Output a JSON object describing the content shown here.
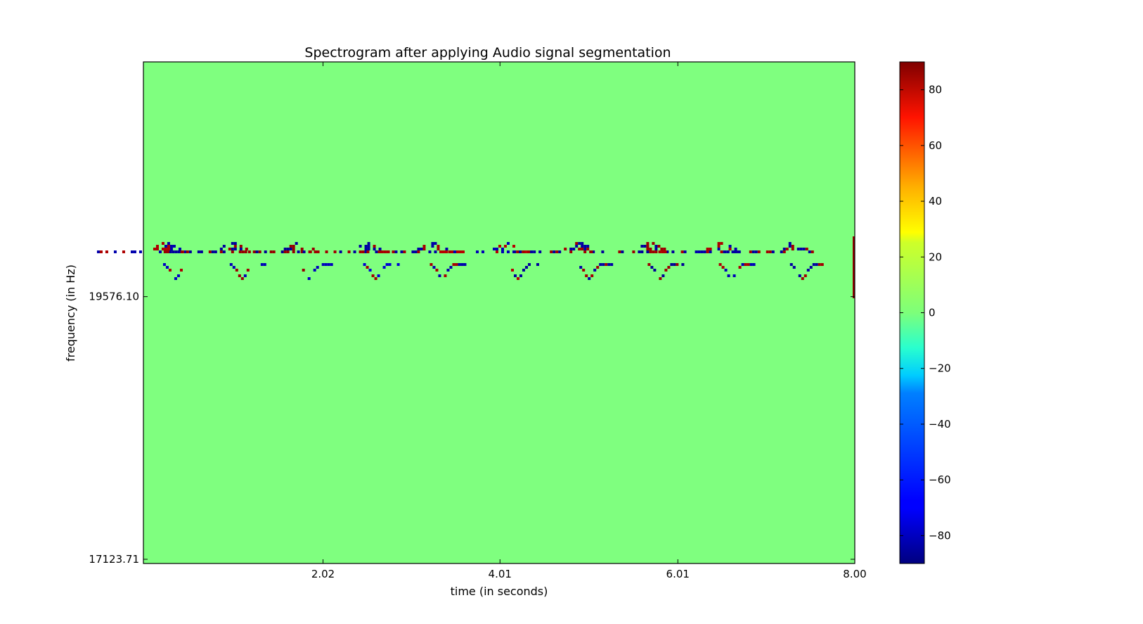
{
  "chart_data": {
    "type": "heatmap",
    "title": "Spectrogram after applying Audio signal segmentation",
    "xlabel": "time (in seconds)",
    "ylabel": "frequency (in Hz)",
    "xlim": [
      0,
      8.0
    ],
    "x_ticks": [
      {
        "value": 2.02,
        "label": "2.02"
      },
      {
        "value": 4.01,
        "label": "4.01"
      },
      {
        "value": 6.01,
        "label": "6.01"
      },
      {
        "value": 8.0,
        "label": "8.00"
      }
    ],
    "y_ticks": [
      {
        "value": 19576.1,
        "label": "19576.10"
      },
      {
        "value": 17123.71,
        "label": "17123.71"
      }
    ],
    "colormap": "jet",
    "background_value": 0,
    "background_color": "#7fff7f",
    "colorbar": {
      "range": [
        -90,
        90
      ],
      "ticks": [
        {
          "value": 80,
          "label": "80"
        },
        {
          "value": 60,
          "label": "60"
        },
        {
          "value": 40,
          "label": "40"
        },
        {
          "value": 20,
          "label": "20"
        },
        {
          "value": 0,
          "label": "0"
        },
        {
          "value": -20,
          "label": "−20"
        },
        {
          "value": -40,
          "label": "−40"
        },
        {
          "value": -60,
          "label": "−60"
        },
        {
          "value": -80,
          "label": "−80"
        }
      ]
    },
    "segments": [
      {
        "t": 0.3,
        "upper_peak": 82,
        "lower_dip": -78
      },
      {
        "t": 1.05,
        "upper_peak": 85,
        "lower_dip": -80
      },
      {
        "t": 1.8,
        "upper_peak": 86,
        "lower_dip": -79
      },
      {
        "t": 2.55,
        "upper_peak": 84,
        "lower_dip": -75
      },
      {
        "t": 3.3,
        "upper_peak": 83,
        "lower_dip": -82
      },
      {
        "t": 4.15,
        "upper_peak": 80,
        "lower_dip": -85
      },
      {
        "t": 4.95,
        "upper_peak": 84,
        "lower_dip": -83
      },
      {
        "t": 5.75,
        "upper_peak": 85,
        "lower_dip": -86
      },
      {
        "t": 6.55,
        "upper_peak": 82,
        "lower_dip": -80
      },
      {
        "t": 7.35,
        "upper_peak": 84,
        "lower_dip": -84
      }
    ],
    "grid": false
  }
}
